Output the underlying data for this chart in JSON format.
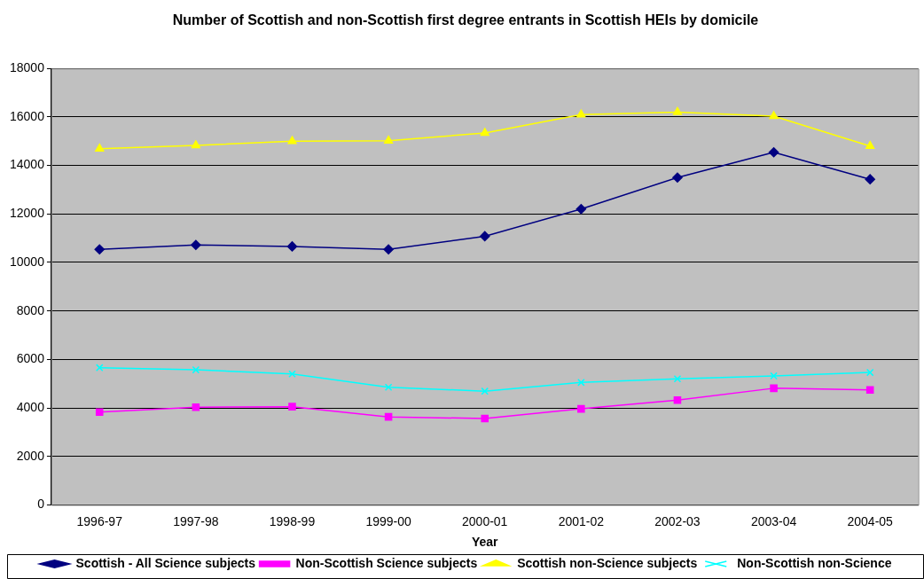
{
  "chart_data": {
    "type": "line",
    "title": "Number of Scottish and non-Scottish first degree entrants in Scottish HEIs by domicile",
    "xlabel": "Year",
    "categories": [
      "1996-97",
      "1997-98",
      "1998-99",
      "1999-00",
      "2000-01",
      "2001-02",
      "2002-03",
      "2003-04",
      "2004-05"
    ],
    "series": [
      {
        "name": "Scottish - All Science subjects",
        "color": "#000080",
        "marker": "diamond",
        "values": [
          10540,
          10720,
          10660,
          10540,
          11080,
          12200,
          13500,
          14540,
          13430
        ]
      },
      {
        "name": "Non-Scottish Science subjects",
        "color": "#ff00ff",
        "marker": "square",
        "values": [
          3830,
          4030,
          4050,
          3630,
          3560,
          3960,
          4320,
          4810,
          4740
        ]
      },
      {
        "name": "Scottish non-Science subjects",
        "color": "#ffff00",
        "marker": "triangle",
        "values": [
          14690,
          14830,
          15000,
          15020,
          15340,
          16100,
          16200,
          16030,
          14800
        ]
      },
      {
        "name": "Non-Scottish non-Science",
        "color": "#00ffff",
        "marker": "cross",
        "values": [
          5660,
          5570,
          5400,
          4850,
          4690,
          5050,
          5200,
          5320,
          5460
        ]
      }
    ],
    "ylim": [
      0,
      18000
    ],
    "yticks": [
      0,
      2000,
      4000,
      6000,
      8000,
      10000,
      12000,
      14000,
      16000,
      18000
    ],
    "grid": "y",
    "legend": "bottom"
  }
}
